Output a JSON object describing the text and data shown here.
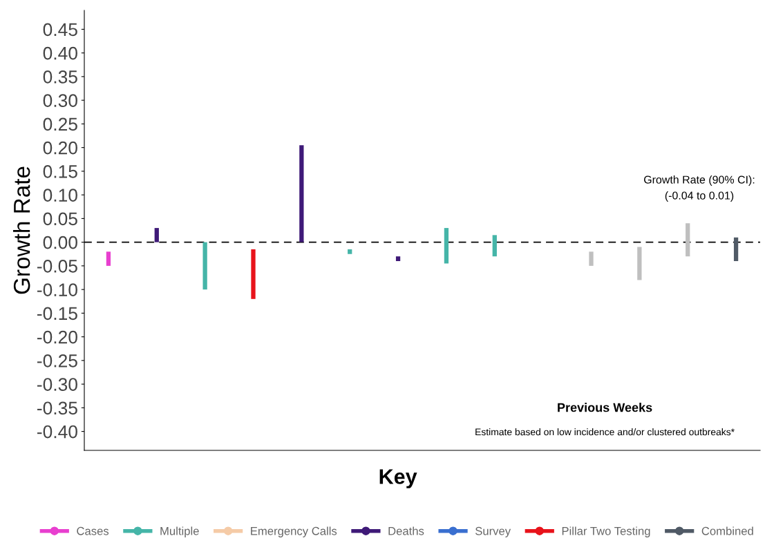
{
  "chart_data": {
    "type": "bar",
    "ylabel": "Growth Rate",
    "legend_title": "Key",
    "legend": "bottom",
    "grid": false,
    "tick_labels": "y",
    "categories": [
      null,
      null,
      null,
      null,
      null,
      null,
      null,
      null,
      null,
      null,
      null,
      null,
      null,
      null
    ],
    "ylim": [
      -0.44,
      0.49
    ],
    "yticks": [
      {
        "value": -0.4,
        "label": "-0.40"
      },
      {
        "value": -0.35,
        "label": "-0.35"
      },
      {
        "value": -0.3,
        "label": "-0.30"
      },
      {
        "value": -0.25,
        "label": "-0.25"
      },
      {
        "value": -0.2,
        "label": "-0.20"
      },
      {
        "value": -0.15,
        "label": "-0.15"
      },
      {
        "value": -0.1,
        "label": "-0.10"
      },
      {
        "value": -0.05,
        "label": "-0.05"
      },
      {
        "value": 0,
        "label": "0.00"
      },
      {
        "value": 0.05,
        "label": "0.05"
      },
      {
        "value": 0.1,
        "label": "0.10"
      },
      {
        "value": 0.15,
        "label": "0.15"
      },
      {
        "value": 0.2,
        "label": "0.20"
      },
      {
        "value": 0.25,
        "label": "0.25"
      },
      {
        "value": 0.3,
        "label": "0.30"
      },
      {
        "value": 0.35,
        "label": "0.35"
      },
      {
        "value": 0.4,
        "label": "0.40"
      },
      {
        "value": 0.45,
        "label": "0.45"
      }
    ],
    "series": [
      {
        "name": "Cases",
        "color": "#e83fcf",
        "base": [
          -0.05,
          null,
          null,
          null,
          null,
          null,
          null,
          null,
          null,
          null,
          null,
          null,
          null,
          null
        ],
        "values": [
          0.03,
          null,
          null,
          null,
          null,
          null,
          null,
          null,
          null,
          null,
          null,
          null,
          null,
          null
        ]
      },
      {
        "name": "Multiple",
        "color": "#45b5a8",
        "base": [
          null,
          null,
          -0.1,
          null,
          null,
          -0.025,
          null,
          -0.045,
          -0.03,
          null,
          null,
          null,
          null,
          null
        ],
        "values": [
          null,
          null,
          0.1,
          null,
          null,
          0.01,
          null,
          0.075,
          0.045,
          null,
          null,
          null,
          null,
          null
        ]
      },
      {
        "name": "Emergency Calls",
        "color": "#f5cba7",
        "base": [
          null,
          null,
          null,
          null,
          null,
          null,
          null,
          null,
          null,
          null,
          null,
          null,
          null,
          null
        ],
        "values": [
          null,
          null,
          null,
          null,
          null,
          null,
          null,
          null,
          null,
          null,
          null,
          null,
          null,
          null
        ]
      },
      {
        "name": "Deaths",
        "color": "#3f1a78",
        "base": [
          null,
          0,
          null,
          null,
          0,
          null,
          -0.04,
          null,
          null,
          null,
          null,
          null,
          null,
          null
        ],
        "values": [
          null,
          0.03,
          null,
          null,
          0.205,
          null,
          0.01,
          null,
          null,
          null,
          null,
          null,
          null,
          null
        ]
      },
      {
        "name": "Survey",
        "color": "#3a6fd0",
        "base": [
          null,
          null,
          null,
          null,
          null,
          null,
          null,
          null,
          null,
          null,
          null,
          null,
          null,
          null
        ],
        "values": [
          null,
          null,
          null,
          null,
          null,
          null,
          null,
          null,
          null,
          null,
          null,
          null,
          null,
          null
        ]
      },
      {
        "name": "Pillar Two Testing",
        "color": "#e8131b",
        "base": [
          null,
          null,
          null,
          -0.12,
          null,
          null,
          null,
          null,
          null,
          null,
          null,
          null,
          null,
          null
        ],
        "values": [
          null,
          null,
          null,
          0.105,
          null,
          null,
          null,
          null,
          null,
          null,
          null,
          null,
          null,
          null
        ]
      },
      {
        "name": "Combined",
        "color": "#505a66",
        "base": [
          null,
          null,
          null,
          null,
          null,
          null,
          null,
          null,
          null,
          null,
          null,
          null,
          null,
          -0.04
        ],
        "values": [
          null,
          null,
          null,
          null,
          null,
          null,
          null,
          null,
          null,
          null,
          null,
          null,
          null,
          0.05
        ]
      },
      {
        "color": "#bfbfbf",
        "base": [
          null,
          null,
          null,
          null,
          null,
          null,
          null,
          null,
          null,
          null,
          -0.05,
          -0.08,
          -0.03,
          null
        ],
        "values": [
          null,
          null,
          null,
          null,
          null,
          null,
          null,
          null,
          null,
          null,
          0.03,
          0.07,
          0.07,
          null
        ]
      }
    ],
    "ref_lines": [
      {
        "axis": "y",
        "value": 0,
        "color": "#000000",
        "line_style": "dashed"
      }
    ],
    "annotations": [
      "Growth Rate (90% CI):\n(-0.04 to 0.01)",
      "Previous Weeks",
      "Estimate based on low incidence and/or clustered outbreaks*"
    ]
  }
}
